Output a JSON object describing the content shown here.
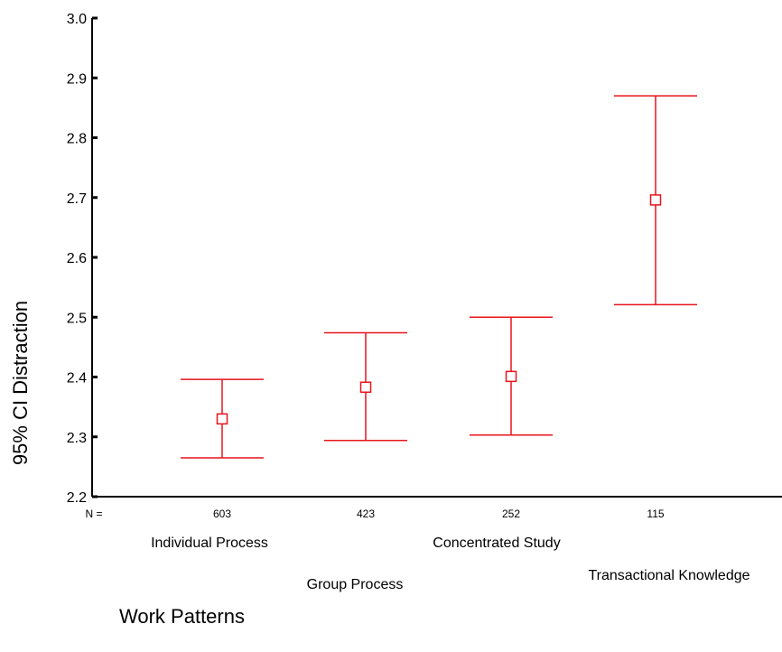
{
  "chart_data": {
    "type": "errorbar",
    "ylabel": "95% CI Distraction",
    "xlabel": "Work Patterns",
    "ylim": [
      2.2,
      3.0
    ],
    "yticks": [
      "2.2",
      "2.3",
      "2.4",
      "2.5",
      "2.6",
      "2.7",
      "2.8",
      "2.9",
      "3.0"
    ],
    "n_prefix": "N =",
    "categories": [
      "Individual Process",
      "Group Process",
      "Concentrated Study",
      "Transactional Knowledge"
    ],
    "n": [
      "603",
      "423",
      "252",
      "115"
    ],
    "mean": [
      2.33,
      2.383,
      2.401,
      2.696
    ],
    "lower": [
      2.265,
      2.294,
      2.303,
      2.521
    ],
    "upper": [
      2.396,
      2.474,
      2.5,
      2.87
    ],
    "color": "#e8141c"
  }
}
